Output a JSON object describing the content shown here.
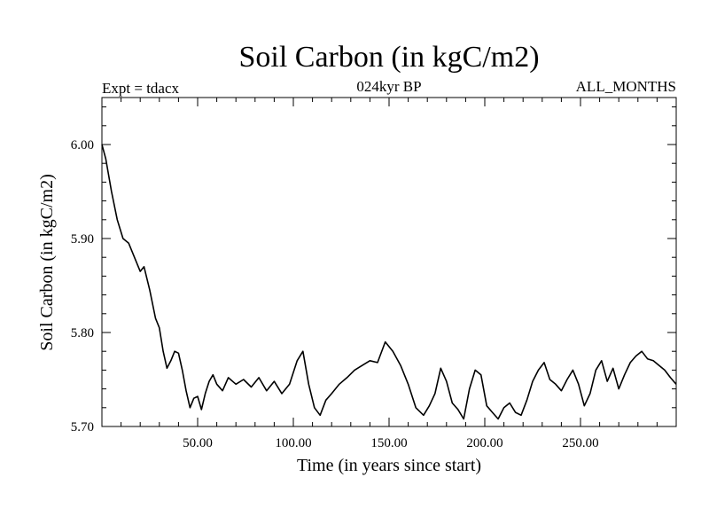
{
  "chart_data": {
    "type": "line",
    "title": "Soil Carbon (in kgC/m2)",
    "subtitle_left": "Expt = tdacx",
    "subtitle_center": "024kyr BP",
    "subtitle_right": "ALL_MONTHS",
    "xlabel": "Time (in years since start)",
    "ylabel": "Soil Carbon (in kgC/m2)",
    "xlim": [
      0,
      300
    ],
    "ylim": [
      5.7,
      6.05
    ],
    "x_ticks": [
      50,
      100,
      150,
      200,
      250
    ],
    "x_tick_labels": [
      "50.00",
      "100.00",
      "150.00",
      "200.00",
      "250.00"
    ],
    "y_ticks": [
      5.7,
      5.8,
      5.9,
      6.0
    ],
    "y_tick_labels": [
      "5.70",
      "5.80",
      "5.90",
      "6.00"
    ],
    "grid": false,
    "series": [
      {
        "name": "Soil Carbon",
        "color": "#000000",
        "x": [
          0,
          2,
          5,
          8,
          11,
          14,
          17,
          20,
          22,
          25,
          28,
          30,
          32,
          34,
          36,
          38,
          40,
          42,
          44,
          46,
          48,
          50,
          52,
          54,
          56,
          58,
          60,
          63,
          66,
          70,
          74,
          78,
          82,
          86,
          90,
          94,
          98,
          102,
          105,
          108,
          111,
          114,
          117,
          120,
          124,
          128,
          132,
          136,
          140,
          144,
          148,
          152,
          156,
          160,
          164,
          168,
          171,
          174,
          177,
          180,
          183,
          186,
          189,
          192,
          195,
          198,
          201,
          204,
          207,
          210,
          213,
          216,
          219,
          222,
          225,
          228,
          231,
          234,
          237,
          240,
          243,
          246,
          249,
          252,
          255,
          258,
          261,
          264,
          267,
          270,
          273,
          276,
          279,
          282,
          285,
          288,
          291,
          294,
          297,
          300
        ],
        "values": [
          6.0,
          5.985,
          5.95,
          5.92,
          5.9,
          5.895,
          5.88,
          5.865,
          5.87,
          5.845,
          5.815,
          5.805,
          5.78,
          5.762,
          5.77,
          5.78,
          5.778,
          5.76,
          5.738,
          5.72,
          5.73,
          5.732,
          5.718,
          5.735,
          5.748,
          5.755,
          5.745,
          5.738,
          5.752,
          5.745,
          5.75,
          5.742,
          5.752,
          5.738,
          5.748,
          5.735,
          5.745,
          5.77,
          5.78,
          5.745,
          5.72,
          5.712,
          5.728,
          5.735,
          5.745,
          5.752,
          5.76,
          5.765,
          5.77,
          5.768,
          5.79,
          5.78,
          5.765,
          5.745,
          5.72,
          5.712,
          5.722,
          5.735,
          5.762,
          5.748,
          5.725,
          5.718,
          5.708,
          5.74,
          5.76,
          5.755,
          5.722,
          5.715,
          5.708,
          5.72,
          5.725,
          5.715,
          5.712,
          5.728,
          5.748,
          5.76,
          5.768,
          5.75,
          5.745,
          5.738,
          5.75,
          5.76,
          5.745,
          5.722,
          5.735,
          5.76,
          5.77,
          5.748,
          5.762,
          5.74,
          5.755,
          5.768,
          5.775,
          5.78,
          5.772,
          5.77,
          5.765,
          5.76,
          5.752,
          5.745
        ]
      }
    ]
  }
}
